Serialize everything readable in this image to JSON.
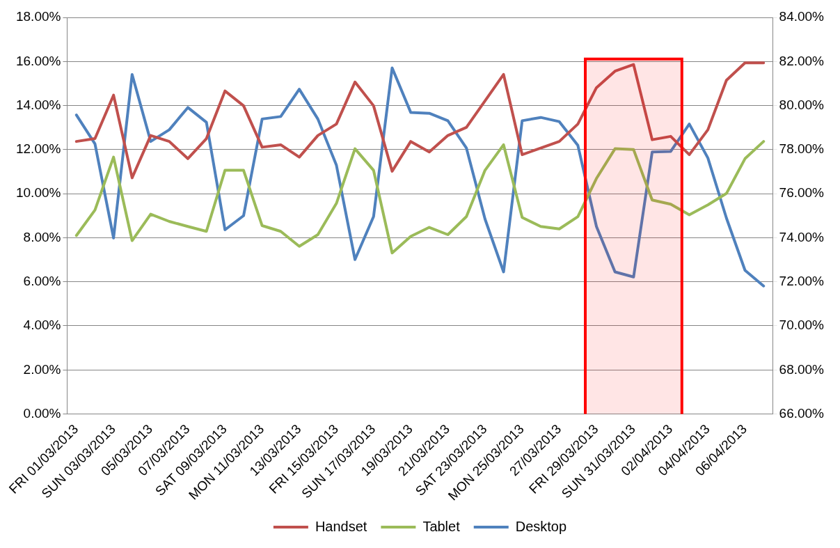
{
  "chart_data": {
    "type": "line",
    "categories": [
      "FRI 01/03/2013",
      null,
      "SUN 03/03/2013",
      null,
      "05/03/2013",
      null,
      "07/03/2013",
      null,
      "SAT 09/03/2013",
      null,
      "MON 11/03/2013",
      null,
      "13/03/2013",
      null,
      "FRI 15/03/2013",
      null,
      "SUN 17/03/2013",
      null,
      "19/03/2013",
      null,
      "21/03/2013",
      null,
      "SAT 23/03/2013",
      null,
      "MON 25/03/2013",
      null,
      "27/03/2013",
      null,
      "FRI 29/03/2013",
      null,
      "SUN 31/03/2013",
      null,
      "02/04/2013",
      null,
      "04/04/2013",
      null,
      "06/04/2013",
      null
    ],
    "series": [
      {
        "name": "Handset",
        "color": "#c0504d",
        "values": [
          12.37,
          12.5,
          14.47,
          10.72,
          12.64,
          12.37,
          11.59,
          12.5,
          14.66,
          13.99,
          12.11,
          12.22,
          11.66,
          12.64,
          13.16,
          15.07,
          13.99,
          11.02,
          12.37,
          11.89,
          12.64,
          13.01,
          14.21,
          15.41,
          11.77,
          12.07,
          12.37,
          13.16,
          14.81,
          15.56,
          15.86,
          12.45,
          12.6,
          11.77,
          12.9,
          15.15,
          15.94,
          15.94
        ]
      },
      {
        "name": "Tablet",
        "color": "#9bbb59",
        "values": [
          8.1,
          9.26,
          11.66,
          7.87,
          9.07,
          8.74,
          8.51,
          8.29,
          11.06,
          11.06,
          8.55,
          8.29,
          7.61,
          8.14,
          9.56,
          12.04,
          11.06,
          7.31,
          8.06,
          8.47,
          8.14,
          8.96,
          11.06,
          12.22,
          8.92,
          8.51,
          8.4,
          8.96,
          10.69,
          12.04,
          12.0,
          9.71,
          9.52,
          9.04,
          9.49,
          10.01,
          11.59,
          12.37
        ]
      },
      {
        "name": "Desktop",
        "color": "#4f81bd",
        "axis": "y2",
        "values": [
          79.57,
          78.26,
          73.99,
          81.41,
          78.37,
          78.9,
          79.91,
          79.24,
          74.36,
          75.0,
          79.39,
          79.5,
          80.74,
          79.39,
          77.29,
          73.01,
          74.96,
          81.71,
          79.69,
          79.65,
          79.31,
          78.07,
          74.85,
          72.45,
          79.31,
          79.46,
          79.27,
          78.19,
          74.51,
          72.45,
          72.22,
          77.89,
          77.92,
          79.16,
          77.62,
          74.89,
          72.52,
          71.81
        ]
      }
    ],
    "ylim": [
      0,
      18
    ],
    "yticks": [
      {
        "value": 0,
        "label": "0.00%"
      },
      {
        "value": 2,
        "label": "2.00%"
      },
      {
        "value": 4,
        "label": "4.00%"
      },
      {
        "value": 6,
        "label": "6.00%"
      },
      {
        "value": 8,
        "label": "8.00%"
      },
      {
        "value": 10,
        "label": "10.00%"
      },
      {
        "value": 12,
        "label": "12.00%"
      },
      {
        "value": 14,
        "label": "14.00%"
      },
      {
        "value": 16,
        "label": "16.00%"
      },
      {
        "value": 18,
        "label": "18.00%"
      }
    ],
    "y2lim": [
      66,
      84
    ],
    "y2ticks": [
      {
        "value": 66,
        "label": "66.00%"
      },
      {
        "value": 68,
        "label": "68.00%"
      },
      {
        "value": 70,
        "label": "70.00%"
      },
      {
        "value": 72,
        "label": "72.00%"
      },
      {
        "value": 74,
        "label": "74.00%"
      },
      {
        "value": 76,
        "label": "76.00%"
      },
      {
        "value": 78,
        "label": "78.00%"
      },
      {
        "value": 80,
        "label": "80.00%"
      },
      {
        "value": 82,
        "label": "82.00%"
      },
      {
        "value": 84,
        "label": "84.00%"
      }
    ],
    "bands": [
      {
        "axis": "x",
        "from": "FRI 29/03/2013",
        "to": "02/04/2013",
        "color": "#ff0000"
      }
    ],
    "grid": "y",
    "legend": "bottom",
    "marker": "none",
    "line_style": "solid"
  }
}
